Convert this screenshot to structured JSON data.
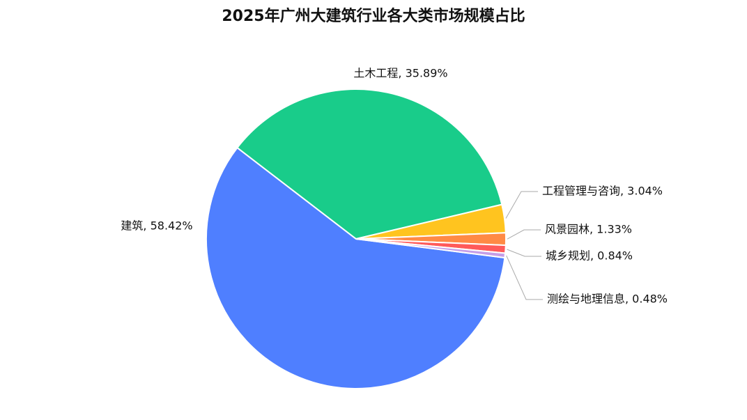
{
  "chart_data": {
    "type": "pie",
    "title": "2025年广州大建筑行业各大类市场规模占比",
    "values": [
      58.42,
      35.89,
      3.04,
      1.33,
      0.84,
      0.48
    ],
    "value_labels": [
      "建筑, 58.42%",
      "土木工程, 35.89%",
      "工程管理与咨询, 3.04%",
      "风景园林, 1.33%",
      "城乡规划, 0.84%",
      "测绘与地理信息, 0.48%"
    ],
    "colors": [
      "#4f7fff",
      "#19cc8a",
      "#ffc41f",
      "#ff8a45",
      "#ff5a5a",
      "#c59ee8"
    ]
  }
}
